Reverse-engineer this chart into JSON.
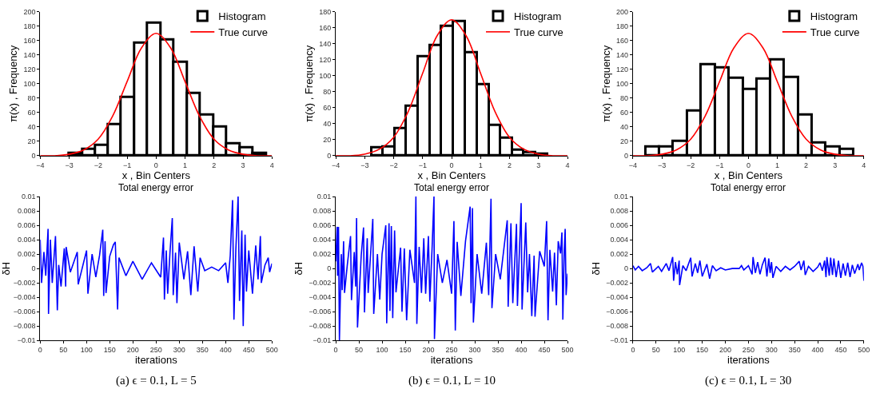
{
  "chart_data": [
    {
      "type": "histogram",
      "xlabel": "x , Bin Centers",
      "ylabel": "π(x) , Frequency",
      "xlim": [
        -4,
        4
      ],
      "xticks": [
        -4,
        -3,
        -2,
        -1,
        0,
        1,
        2,
        3,
        4
      ],
      "ylim": [
        0,
        200
      ],
      "yticks": [
        0,
        20,
        40,
        60,
        80,
        100,
        120,
        140,
        160,
        180,
        200
      ],
      "legend": "top right",
      "series": [
        {
          "name": "Histogram",
          "type": "histogram",
          "color": "#000000",
          "bins": [
            -3.0,
            -2.55,
            -2.1,
            -1.65,
            -1.2,
            -0.75,
            -0.29,
            0.17,
            0.62,
            1.08,
            1.53,
            1.99,
            2.44,
            2.9,
            3.35,
            3.81
          ],
          "values": [
            4,
            9,
            15,
            44,
            81,
            157,
            184,
            161,
            130,
            87,
            57,
            40,
            17,
            11,
            3
          ]
        },
        {
          "name": "True curve",
          "type": "line",
          "color": "#ff0000",
          "x": [
            -4,
            -3.5,
            -3,
            -2.5,
            -2,
            -1.5,
            -1,
            -0.5,
            0,
            0.5,
            1,
            1.5,
            2,
            2.5,
            3,
            3.5,
            4
          ],
          "values": [
            0,
            0,
            2,
            8,
            23,
            55,
            103,
            150,
            170,
            150,
            103,
            55,
            23,
            8,
            2,
            0,
            0
          ]
        }
      ]
    },
    {
      "type": "histogram",
      "xlabel": "x , Bin Centers",
      "ylabel": "π(x) , Frequency",
      "xlim": [
        -4,
        4
      ],
      "xticks": [
        -4,
        -3,
        -2,
        -1,
        0,
        1,
        2,
        3,
        4
      ],
      "ylim": [
        0,
        180
      ],
      "yticks": [
        0,
        20,
        40,
        60,
        80,
        100,
        120,
        140,
        160,
        180
      ],
      "legend": "top right",
      "series": [
        {
          "name": "Histogram",
          "type": "histogram",
          "color": "#000000",
          "bins": [
            -2.77,
            -2.38,
            -1.95,
            -1.56,
            -1.16,
            -0.75,
            -0.35,
            0.06,
            0.47,
            0.88,
            1.29,
            1.69,
            2.09,
            2.49,
            2.9,
            3.31
          ],
          "values": [
            10,
            11,
            34,
            62,
            124,
            138,
            162,
            168,
            129,
            89,
            38,
            22,
            7,
            4,
            2
          ]
        },
        {
          "name": "True curve",
          "type": "line",
          "color": "#ff0000",
          "x": [
            -4,
            -3.5,
            -3,
            -2.5,
            -2,
            -1.5,
            -1,
            -0.5,
            0,
            0.5,
            1,
            1.5,
            2,
            2.5,
            3,
            3.5,
            4
          ],
          "values": [
            0,
            0,
            2,
            8,
            23,
            55,
            103,
            150,
            170,
            150,
            103,
            55,
            23,
            8,
            2,
            0,
            0
          ]
        }
      ]
    },
    {
      "type": "histogram",
      "xlabel": "x , Bin Centers",
      "ylabel": "π(x) , Frequency",
      "xlim": [
        -4,
        4
      ],
      "xticks": [
        -4,
        -3,
        -2,
        -1,
        0,
        1,
        2,
        3,
        4
      ],
      "ylim": [
        0,
        200
      ],
      "yticks": [
        0,
        20,
        40,
        60,
        80,
        100,
        120,
        140,
        160,
        180,
        200
      ],
      "legend": "top right",
      "series": [
        {
          "name": "Histogram",
          "type": "histogram",
          "color": "#000000",
          "bins": [
            -3.56,
            -3.08,
            -2.61,
            -2.13,
            -1.64,
            -1.16,
            -0.67,
            -0.19,
            0.28,
            0.75,
            1.24,
            1.72,
            2.2,
            2.68,
            3.16,
            3.65
          ],
          "values": [
            12,
            12,
            20,
            62,
            127,
            122,
            108,
            92,
            107,
            133,
            109,
            57,
            18,
            12,
            9
          ]
        },
        {
          "name": "True curve",
          "type": "line",
          "color": "#ff0000",
          "x": [
            -4,
            -3.5,
            -3,
            -2.5,
            -2,
            -1.5,
            -1,
            -0.5,
            0,
            0.5,
            1,
            1.5,
            2,
            2.5,
            3,
            3.5,
            4
          ],
          "values": [
            0,
            0,
            2,
            8,
            23,
            55,
            103,
            150,
            170,
            150,
            103,
            55,
            23,
            8,
            2,
            0,
            0
          ]
        }
      ]
    },
    {
      "type": "line",
      "title": "Total energy error",
      "xlabel": "iterations",
      "ylabel": "δH",
      "xlim": [
        0,
        500
      ],
      "xticks": [
        0,
        50,
        100,
        150,
        200,
        250,
        300,
        350,
        400,
        450,
        500
      ],
      "ylim": [
        -0.01,
        0.01
      ],
      "yticks": [
        -0.01,
        -0.008,
        -0.006,
        -0.004,
        -0.002,
        0,
        0.002,
        0.004,
        0.006,
        0.008,
        0.01
      ],
      "annotations": [
        "(a) ϵ = 0.1, L = 5"
      ],
      "series": [
        {
          "color": "#0000ff",
          "x": [
            0,
            3,
            8,
            12,
            17,
            18,
            22,
            26,
            33,
            37,
            40,
            45,
            52,
            55,
            56,
            65,
            80,
            82,
            100,
            103,
            112,
            120,
            128,
            135,
            137,
            140,
            142,
            150,
            158,
            162,
            167,
            170,
            185,
            200,
            220,
            240,
            260,
            266,
            268,
            272,
            275,
            280,
            285,
            287,
            292,
            295,
            300,
            310,
            318,
            325,
            332,
            340,
            345,
            355,
            370,
            385,
            400,
            405,
            410,
            415,
            418,
            422,
            427,
            430,
            435,
            438,
            442,
            445,
            450,
            458,
            465,
            470,
            475,
            477,
            485,
            492,
            495,
            500
          ],
          "values": [
            0.004,
            -0.002,
            0.0023,
            -0.001,
            0.0055,
            -0.0063,
            0.004,
            -0.002,
            0.0045,
            -0.0058,
            0.0005,
            -0.0025,
            0.0028,
            -0.0025,
            0.003,
            -0.0005,
            0.0023,
            -0.0022,
            0.0025,
            -0.0035,
            0.002,
            -0.0012,
            0.0018,
            0.0054,
            -0.0038,
            0.0038,
            -0.0034,
            0.0017,
            0.0033,
            0.0037,
            -0.0057,
            0.0015,
            -0.001,
            0.001,
            -0.0015,
            0.0008,
            -0.0012,
            0.0043,
            -0.0043,
            0.0025,
            -0.0035,
            0.0022,
            0.007,
            -0.0037,
            0.0022,
            -0.0048,
            0.0036,
            -0.0015,
            0.0024,
            -0.0037,
            0.0031,
            -0.0032,
            0.0015,
            -0.0003,
            0.0002,
            -0.0003,
            0.0008,
            -0.002,
            0.0018,
            0.0095,
            -0.0071,
            0.0025,
            0.01,
            -0.0045,
            0.0053,
            -0.008,
            0.0047,
            -0.0032,
            0.0025,
            -0.0035,
            0.0032,
            -0.0015,
            0.0045,
            -0.002,
            0.0005,
            0.0015,
            -0.0005,
            0.0007
          ]
        }
      ]
    },
    {
      "type": "line",
      "title": "Total energy error",
      "xlabel": "iterations",
      "ylabel": "δH",
      "xlim": [
        0,
        500
      ],
      "xticks": [
        0,
        50,
        100,
        150,
        200,
        250,
        300,
        350,
        400,
        450,
        500
      ],
      "ylim": [
        -0.01,
        0.01
      ],
      "yticks": [
        -0.01,
        -0.008,
        -0.006,
        -0.004,
        -0.002,
        0,
        0.002,
        0.004,
        0.006,
        0.008,
        0.01
      ],
      "annotations": [
        "(b) ϵ = 0.1, L = 10"
      ],
      "series": [
        {
          "color": "#0000ff",
          "x": [
            0,
            3,
            4,
            6,
            8,
            12,
            14,
            17,
            19,
            25,
            32,
            34,
            40,
            43,
            45,
            47,
            55,
            60,
            62,
            68,
            70,
            80,
            82,
            90,
            95,
            100,
            108,
            110,
            115,
            117,
            120,
            123,
            127,
            130,
            140,
            143,
            148,
            153,
            160,
            170,
            173,
            175,
            180,
            185,
            190,
            194,
            200,
            203,
            208,
            212,
            213,
            220,
            230,
            240,
            250,
            255,
            258,
            262,
            270,
            280,
            290,
            292,
            295,
            297,
            305,
            315,
            325,
            330,
            335,
            337,
            345,
            355,
            370,
            372,
            378,
            382,
            390,
            392,
            400,
            402,
            410,
            414,
            418,
            423,
            428,
            430,
            440,
            450,
            455,
            458,
            462,
            468,
            472,
            476,
            480,
            485,
            488,
            490,
            493,
            495,
            497,
            500
          ],
          "values": [
            0.001,
            0.0058,
            -0.001,
            0.0058,
            -0.01,
            0.002,
            -0.003,
            0.0038,
            -0.0034,
            0.0005,
            0.0045,
            -0.0044,
            0.0023,
            -0.0025,
            0.007,
            -0.0082,
            0.0018,
            0.0057,
            -0.0061,
            0.0042,
            -0.0034,
            0.0069,
            -0.0063,
            0.002,
            -0.0043,
            0.002,
            0.006,
            -0.0076,
            0.0063,
            -0.0059,
            0.0059,
            -0.0069,
            0.0053,
            -0.0033,
            0.0029,
            -0.006,
            0.0028,
            -0.0072,
            0.0026,
            -0.002,
            0.01,
            -0.0077,
            0.003,
            -0.0034,
            0.0042,
            -0.0035,
            0.0045,
            -0.0046,
            0.003,
            0.01,
            -0.0098,
            0.002,
            -0.002,
            0.0012,
            -0.0035,
            0.0066,
            -0.0086,
            0.0037,
            -0.0038,
            0.0038,
            0.0086,
            -0.0048,
            0.0084,
            -0.0075,
            0.002,
            -0.0035,
            0.0036,
            -0.0037,
            0.0097,
            -0.0055,
            0.002,
            -0.0015,
            0.0067,
            -0.0053,
            0.0063,
            -0.0048,
            0.0062,
            -0.0052,
            0.0091,
            -0.0057,
            0.0064,
            -0.0033,
            0.002,
            -0.0066,
            0.0018,
            -0.0067,
            0.0024,
            0.0003,
            0.0066,
            -0.0072,
            0.0026,
            -0.0032,
            0.0022,
            -0.0051,
            0.0038,
            0.0021,
            0.005,
            -0.0071,
            0.0025,
            0.0055,
            -0.0037,
            -0.0007
          ]
        }
      ]
    },
    {
      "type": "line",
      "title": "Total energy error",
      "xlabel": "iterations",
      "ylabel": "δH",
      "xlim": [
        0,
        500
      ],
      "xticks": [
        0,
        50,
        100,
        150,
        200,
        250,
        300,
        350,
        400,
        450,
        500
      ],
      "ylim": [
        -0.01,
        0.01
      ],
      "yticks": [
        -0.01,
        -0.008,
        -0.006,
        -0.004,
        -0.002,
        0,
        0.002,
        0.004,
        0.006,
        0.008,
        0.01
      ],
      "annotations": [
        "(c) ϵ = 0.1, L = 30"
      ],
      "series": [
        {
          "color": "#0000ff",
          "x": [
            0,
            5,
            12,
            20,
            30,
            38,
            42,
            55,
            62,
            72,
            78,
            86,
            88,
            92,
            96,
            100,
            101,
            108,
            115,
            125,
            128,
            135,
            140,
            145,
            150,
            160,
            166,
            172,
            180,
            190,
            200,
            215,
            230,
            235,
            240,
            250,
            258,
            260,
            265,
            270,
            275,
            280,
            286,
            290,
            294,
            297,
            300,
            303,
            310,
            320,
            330,
            340,
            350,
            360,
            364,
            370,
            373,
            380,
            390,
            400,
            405,
            410,
            415,
            418,
            420,
            425,
            428,
            432,
            435,
            440,
            445,
            450,
            455,
            460,
            465,
            470,
            475,
            480,
            487,
            490,
            495,
            498,
            500
          ],
          "values": [
            0.0004,
            -0.0002,
            0.0003,
            -0.0003,
            0.0001,
            0.0007,
            -0.0005,
            0.0003,
            -0.0004,
            0.0007,
            -0.0003,
            0.0016,
            -0.0017,
            0.0009,
            -0.0008,
            0.0011,
            -0.0023,
            0.0004,
            -0.0003,
            0.0015,
            -0.0011,
            0.0007,
            -0.0006,
            0.0011,
            -0.0011,
            0.0006,
            -0.0014,
            0.0004,
            -0.0003,
            0.0001,
            -0.0002,
            0.0,
            0.0,
            0.0004,
            -0.0002,
            0.0004,
            -0.0008,
            0.0016,
            -0.0006,
            0.0009,
            -0.0008,
            0.0005,
            0.0015,
            -0.0011,
            0.0014,
            -0.0006,
            0.0009,
            -0.0013,
            0.0003,
            -0.0004,
            0.0003,
            -0.0002,
            0.0003,
            0.001,
            -0.0002,
            0.0011,
            -0.0009,
            0.0003,
            -0.0004,
            0.0002,
            0.0008,
            -0.0003,
            0.0011,
            -0.0012,
            0.0016,
            -0.001,
            0.0015,
            -0.0009,
            0.0014,
            -0.0012,
            0.0011,
            -0.0013,
            0.0007,
            -0.001,
            0.0008,
            -0.0012,
            0.0005,
            -0.0007,
            0.0006,
            -0.0002,
            0.0008,
            0.0003,
            -0.0017
          ]
        }
      ]
    }
  ]
}
